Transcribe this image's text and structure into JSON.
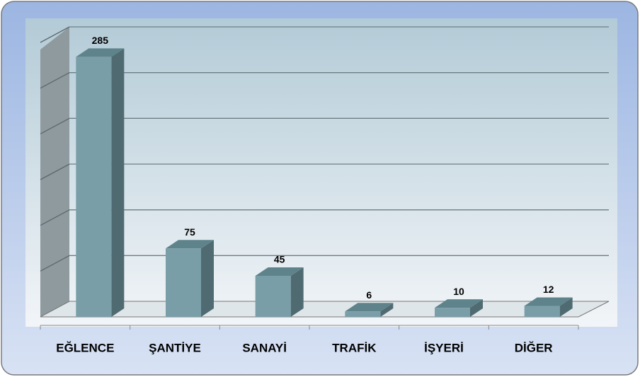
{
  "chart_data": {
    "type": "bar3d",
    "categories": [
      "EĞLENCE",
      "ŞANTİYE",
      "SANAYİ",
      "TRAFİK",
      "İŞYERİ",
      "DİĞER"
    ],
    "values": [
      285,
      75,
      45,
      6,
      10,
      12
    ],
    "color": "#7a9ea8",
    "ylim": [
      0,
      300
    ],
    "yticks": [
      0,
      50,
      100,
      150,
      200,
      250,
      300
    ],
    "grid": true
  }
}
